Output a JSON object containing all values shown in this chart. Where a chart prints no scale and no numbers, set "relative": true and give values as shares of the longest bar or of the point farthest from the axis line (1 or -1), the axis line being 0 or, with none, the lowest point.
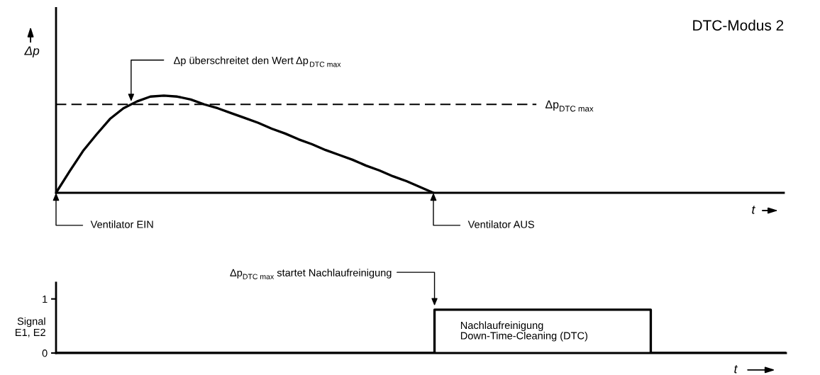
{
  "chart_data": [
    {
      "type": "line",
      "title": "DTC-Modus 2",
      "xlabel": "t",
      "ylabel": "Δp",
      "relative": true,
      "grid": false,
      "marker": "none",
      "line_style": "solid",
      "categories": [
        null,
        null,
        null,
        null,
        null,
        null,
        null,
        null,
        null,
        null,
        null,
        null,
        null,
        null,
        null,
        null,
        null,
        null,
        null,
        null,
        null,
        null,
        null,
        null,
        null,
        null,
        null,
        null,
        null,
        null,
        null,
        null,
        null,
        null,
        null,
        null,
        null,
        null,
        null,
        null,
        null,
        null,
        null,
        null,
        null,
        null,
        null,
        null,
        null,
        null,
        null,
        null,
        null,
        null,
        null
      ],
      "series": [
        {
          "color": "#000000",
          "values": [
            0,
            0.22,
            0.43,
            0.6,
            0.76,
            0.87,
            0.94,
            0.99,
            1.0,
            0.99,
            0.96,
            0.91,
            0.87,
            0.82,
            0.77,
            0.72,
            0.66,
            0.61,
            0.55,
            0.5,
            0.44,
            0.39,
            0.34,
            0.28,
            0.23,
            0.17,
            0.12,
            0.06,
            0,
            null,
            null,
            null,
            null,
            null,
            null,
            null,
            null,
            null,
            null,
            null,
            null,
            null,
            null,
            null,
            null,
            null,
            null,
            null,
            null,
            null,
            null,
            null,
            null,
            null,
            null
          ]
        }
      ],
      "ref_lines": [
        {
          "axis": "y",
          "value": 0.91,
          "label": "Δp$_{DTC max}$",
          "color": "#000000",
          "line_style": "dashed"
        }
      ],
      "annotations": [
        "Δp überschreitet den Wert Δp$_{DTC max}$",
        "Ventilator EIN",
        "Ventilator AUS"
      ]
    },
    {
      "type": "step",
      "xlabel": "t",
      "ylabel": "Signal\nE1, E2",
      "ylim": [
        0,
        1.3
      ],
      "yticks": [
        0,
        1
      ],
      "grid": false,
      "tick_labels": "y",
      "categories": [
        null,
        null,
        null,
        null,
        null,
        null,
        null,
        null,
        null,
        null,
        null,
        null,
        null,
        null,
        null,
        null,
        null,
        null,
        null,
        null,
        null,
        null,
        null,
        null,
        null,
        null,
        null,
        null,
        null,
        null,
        null,
        null,
        null,
        null,
        null,
        null,
        null,
        null,
        null,
        null,
        null,
        null,
        null,
        null,
        null,
        null,
        null,
        null,
        null,
        null,
        null,
        null,
        null,
        null,
        null
      ],
      "series": [
        {
          "color": "#000000",
          "values": [
            0,
            0,
            0,
            0,
            0,
            0,
            0,
            0,
            0,
            0,
            0,
            0,
            0,
            0,
            0,
            0,
            0,
            0,
            0,
            0,
            0,
            0,
            0,
            0,
            0,
            0,
            0,
            0,
            0.8,
            0.8,
            0.8,
            0.8,
            0.8,
            0.8,
            0.8,
            0.8,
            0.8,
            0.8,
            0.8,
            0.8,
            0.8,
            0.8,
            0.8,
            0.8,
            0,
            0,
            0,
            0,
            0,
            0,
            0,
            0,
            0,
            0,
            0
          ]
        }
      ],
      "annotations": [
        "Δp$_{DTC max}$ startet Nachlaufreinigung",
        "Nachlaufreinigung\nDown-Time-Cleaning (DTC)"
      ]
    }
  ]
}
